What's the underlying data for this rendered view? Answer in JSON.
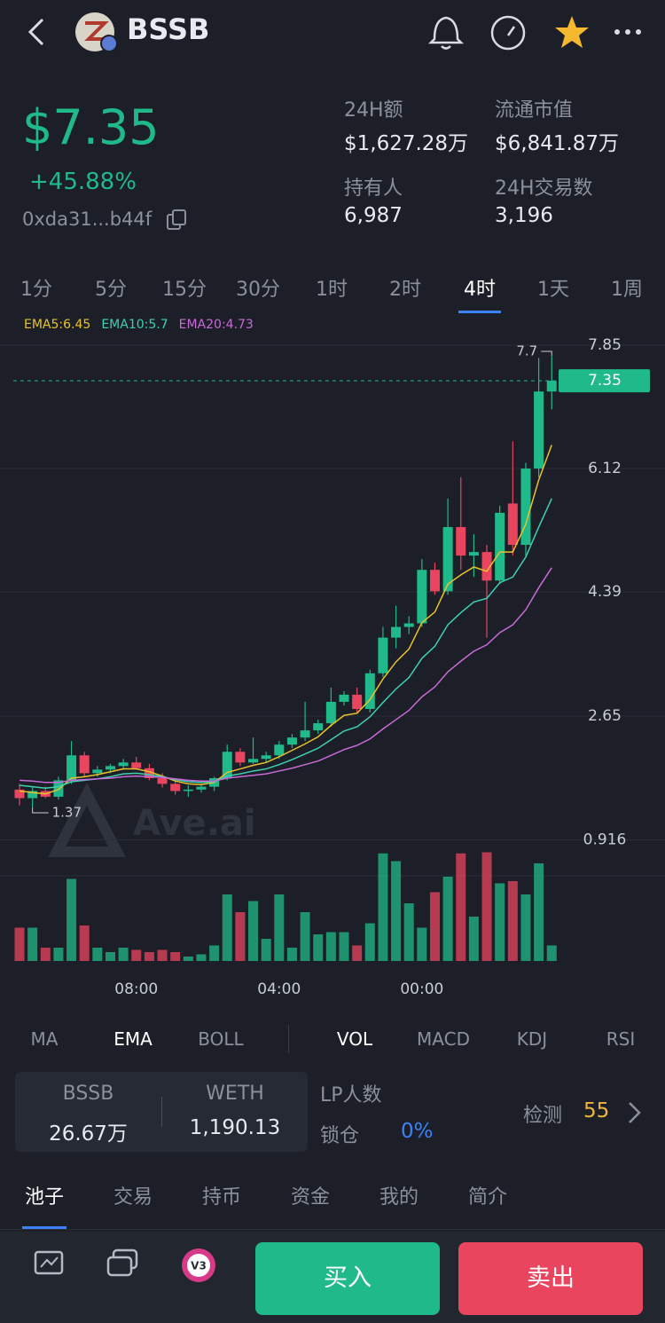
{
  "header": {
    "symbol": "BSSB"
  },
  "price": {
    "value": "$7.35",
    "change": "+45.88%",
    "address": "0xda31...b44f"
  },
  "stats": [
    {
      "label": "24H额",
      "value": "$1,627.28万"
    },
    {
      "label": "流通市值",
      "value": "$6,841.87万"
    },
    {
      "label": "持有人",
      "value": "6,987"
    },
    {
      "label": "24H交易数",
      "value": "3,196"
    }
  ],
  "intervals": [
    "1分",
    "5分",
    "15分",
    "30分",
    "1时",
    "2时",
    "4时",
    "1天",
    "1周"
  ],
  "active_interval": 6,
  "chart_data": {
    "type": "candlestick",
    "categories": [
      null,
      null,
      null,
      null,
      null,
      null,
      null,
      null,
      null,
      "08:00",
      null,
      null,
      null,
      null,
      null,
      null,
      null,
      null,
      null,
      null,
      "04:00",
      null,
      null,
      null,
      null,
      null,
      null,
      null,
      null,
      null,
      null,
      "00:00",
      null,
      null,
      null,
      null,
      null,
      null,
      null,
      null,
      null,
      null
    ],
    "candles": {
      "open": [
        1.62,
        1.5,
        1.6,
        1.52,
        1.75,
        2.1,
        1.85,
        1.9,
        1.95,
        2.0,
        1.92,
        1.78,
        1.7,
        1.6,
        1.62,
        1.66,
        1.78,
        2.15,
        2.0,
        2.05,
        2.1,
        2.25,
        2.35,
        2.45,
        2.55,
        2.85,
        2.95,
        2.75,
        3.25,
        3.75,
        3.9,
        3.95,
        4.7,
        4.4,
        5.3,
        4.9,
        4.95,
        4.55,
        5.63,
        5.05,
        6.12,
        7.2
      ],
      "high": [
        1.7,
        1.65,
        1.66,
        1.8,
        2.3,
        2.15,
        1.95,
        1.98,
        2.05,
        2.08,
        1.98,
        1.85,
        1.75,
        1.68,
        1.7,
        1.8,
        2.25,
        2.2,
        2.35,
        2.15,
        2.3,
        2.4,
        2.85,
        2.6,
        3.05,
        3.0,
        3.05,
        3.3,
        3.9,
        4.2,
        4.05,
        4.85,
        4.8,
        5.7,
        6.0,
        5.2,
        5.05,
        5.6,
        6.5,
        6.2,
        7.67,
        7.7
      ],
      "low": [
        1.4,
        1.37,
        1.5,
        1.48,
        1.7,
        1.8,
        1.8,
        1.85,
        1.9,
        1.9,
        1.75,
        1.65,
        1.55,
        1.52,
        1.58,
        1.6,
        1.75,
        1.95,
        1.98,
        2.0,
        2.05,
        2.2,
        2.3,
        2.4,
        2.5,
        2.8,
        2.7,
        2.7,
        3.2,
        3.6,
        3.8,
        3.9,
        4.35,
        4.35,
        4.7,
        4.6,
        3.75,
        4.5,
        4.9,
        4.9,
        6.0,
        6.95
      ],
      "close": [
        1.5,
        1.6,
        1.52,
        1.75,
        2.1,
        1.85,
        1.9,
        1.95,
        2.0,
        1.92,
        1.78,
        1.7,
        1.6,
        1.62,
        1.66,
        1.78,
        2.15,
        2.0,
        2.05,
        2.1,
        2.25,
        2.35,
        2.45,
        2.55,
        2.85,
        2.95,
        2.75,
        3.25,
        3.75,
        3.9,
        3.95,
        4.7,
        4.4,
        5.3,
        4.9,
        4.95,
        4.55,
        5.5,
        5.05,
        6.12,
        7.2,
        7.35
      ]
    },
    "series": [
      {
        "name": "EMA5",
        "label": "EMA5:6.45",
        "color": "#e8c22c",
        "values": [
          1.6,
          1.58,
          1.56,
          1.62,
          1.78,
          1.8,
          1.83,
          1.87,
          1.91,
          1.91,
          1.87,
          1.81,
          1.74,
          1.7,
          1.69,
          1.72,
          1.86,
          1.91,
          1.96,
          2.0,
          2.08,
          2.17,
          2.26,
          2.36,
          2.52,
          2.66,
          2.69,
          2.88,
          3.17,
          3.41,
          3.59,
          3.96,
          4.11,
          4.5,
          4.63,
          4.74,
          4.68,
          4.95,
          4.95,
          5.34,
          5.96,
          6.45
        ]
      },
      {
        "name": "EMA10",
        "label": "EMA10:5.7",
        "color": "#3fd0b0",
        "values": [
          1.68,
          1.66,
          1.64,
          1.66,
          1.73,
          1.75,
          1.77,
          1.8,
          1.84,
          1.85,
          1.83,
          1.8,
          1.76,
          1.73,
          1.72,
          1.73,
          1.81,
          1.84,
          1.88,
          1.91,
          1.97,
          2.04,
          2.12,
          2.2,
          2.32,
          2.44,
          2.5,
          2.64,
          2.84,
          3.03,
          3.19,
          3.46,
          3.63,
          3.93,
          4.1,
          4.25,
          4.3,
          4.52,
          4.6,
          4.88,
          5.3,
          5.7
        ]
      },
      {
        "name": "EMA20",
        "label": "EMA20:4.73",
        "color": "#c86ad8",
        "values": [
          1.75,
          1.74,
          1.72,
          1.72,
          1.75,
          1.76,
          1.77,
          1.78,
          1.8,
          1.81,
          1.8,
          1.79,
          1.77,
          1.75,
          1.74,
          1.74,
          1.78,
          1.8,
          1.82,
          1.84,
          1.88,
          1.92,
          1.97,
          2.02,
          2.1,
          2.18,
          2.24,
          2.33,
          2.47,
          2.6,
          2.73,
          2.92,
          3.06,
          3.27,
          3.42,
          3.56,
          3.65,
          3.82,
          3.93,
          4.14,
          4.45,
          4.73
        ]
      }
    ],
    "volume": [
      30,
      30,
      12,
      12,
      74,
      32,
      12,
      8,
      12,
      10,
      8,
      10,
      8,
      4,
      6,
      14,
      60,
      44,
      54,
      20,
      60,
      12,
      44,
      24,
      26,
      26,
      14,
      34,
      97,
      90,
      52,
      30,
      62,
      76,
      97,
      40,
      98,
      70,
      72,
      60,
      88,
      14
    ],
    "vlim": [
      0,
      100
    ],
    "ylim": [
      0.75,
      8.0
    ],
    "yticks": [
      0.916,
      2.65,
      4.39,
      6.12,
      7.85
    ],
    "up_color": "#20b98a",
    "down_color": "#e9455f",
    "grid": true,
    "watermark": "Ave.ai"
  },
  "indicators": [
    "MA",
    "EMA",
    "BOLL",
    "VOL",
    "MACD",
    "KDJ",
    "RSI"
  ],
  "active_indicators": [
    1,
    3
  ],
  "pool": {
    "token_a": {
      "name": "BSSB",
      "amount": "26.67万"
    },
    "token_b": {
      "name": "WETH",
      "amount": "1,190.13"
    },
    "lp_label": "LP人数",
    "lock_label": "锁仓",
    "lock_value": "0%",
    "check_label": "检测",
    "check_value": "55"
  },
  "tabs": [
    "池子",
    "交易",
    "持币",
    "资金",
    "我的",
    "简介"
  ],
  "active_tab": 0,
  "bottom_nav": [
    "监控",
    "群聊",
    "DApp"
  ],
  "dapp_badge": "V3",
  "buy": "买入",
  "sell": "卖出"
}
